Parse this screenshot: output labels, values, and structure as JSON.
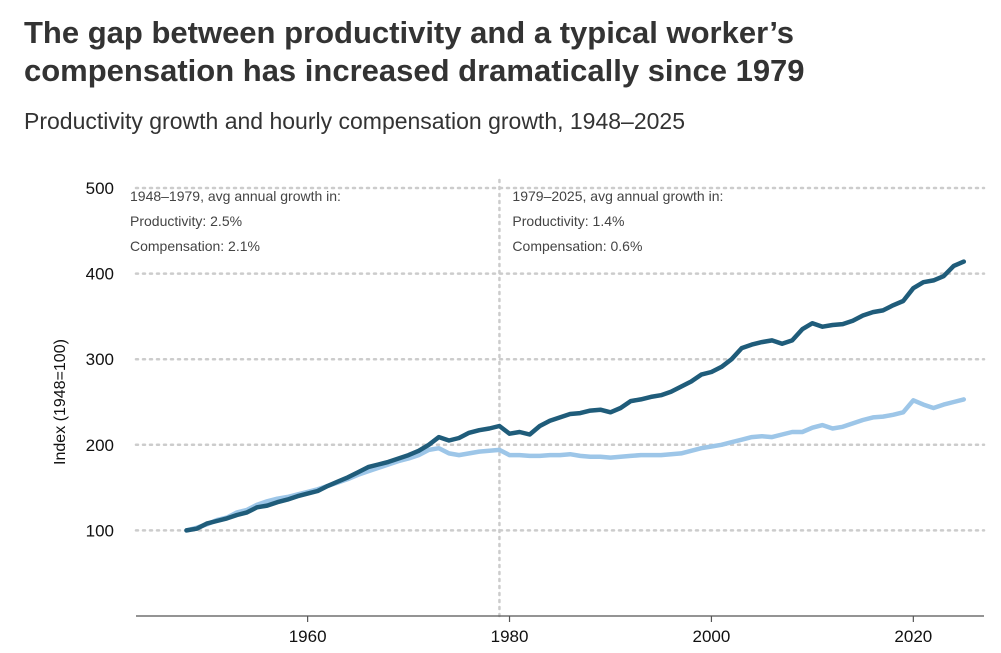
{
  "title": "The gap between productivity and a typical worker’s compensation has increased dramatically since 1979",
  "subtitle": "Productivity growth and hourly compensation growth, 1948–2025",
  "chart_data": {
    "type": "line",
    "title": "The gap between productivity and a typical worker’s compensation has increased dramatically since 1979",
    "subtitle": "Productivity growth and hourly compensation growth, 1948–2025",
    "xlabel": "",
    "ylabel": "Index (1948=100)",
    "xlim": [
      1943,
      2027
    ],
    "ylim": [
      0,
      500
    ],
    "xticks": [
      1960,
      1980,
      2000,
      2020
    ],
    "yticks": [
      100,
      200,
      300,
      400,
      500
    ],
    "grid": "horizontal dotted",
    "reference_line_x": 1979,
    "annotations": [
      {
        "side": "left",
        "lines": [
          "1948–1979, avg annual growth in:",
          "Productivity: 2.5%",
          "Compensation: 2.1%"
        ]
      },
      {
        "side": "right",
        "lines": [
          "1979–2025, avg annual growth in:",
          "Productivity: 1.4%",
          "Compensation: 0.6%"
        ]
      }
    ],
    "colors": {
      "productivity": "#1f5c7a",
      "compensation": "#9dc6e8",
      "grid": "#cccccc",
      "axis": "#555555"
    },
    "series": [
      {
        "key": "productivity",
        "color": "#1f5c7a",
        "x": [
          1948,
          1949,
          1950,
          1951,
          1952,
          1953,
          1954,
          1955,
          1956,
          1957,
          1958,
          1959,
          1960,
          1961,
          1962,
          1963,
          1964,
          1965,
          1966,
          1967,
          1968,
          1969,
          1970,
          1971,
          1972,
          1973,
          1974,
          1975,
          1976,
          1977,
          1978,
          1979,
          1980,
          1981,
          1982,
          1983,
          1984,
          1985,
          1986,
          1987,
          1988,
          1989,
          1990,
          1991,
          1992,
          1993,
          1994,
          1995,
          1996,
          1997,
          1998,
          1999,
          2000,
          2001,
          2002,
          2003,
          2004,
          2005,
          2006,
          2007,
          2008,
          2009,
          2010,
          2011,
          2012,
          2013,
          2014,
          2015,
          2016,
          2017,
          2018,
          2019,
          2020,
          2021,
          2022,
          2023,
          2024,
          2025
        ],
        "values": [
          100,
          102,
          108,
          111,
          114,
          118,
          121,
          127,
          129,
          133,
          136,
          140,
          143,
          146,
          152,
          157,
          162,
          168,
          174,
          177,
          180,
          184,
          188,
          193,
          200,
          209,
          205,
          208,
          214,
          217,
          219,
          222,
          213,
          215,
          212,
          222,
          228,
          232,
          236,
          237,
          240,
          241,
          238,
          243,
          251,
          253,
          256,
          258,
          262,
          268,
          274,
          282,
          285,
          291,
          300,
          313,
          317,
          320,
          322,
          318,
          322,
          335,
          342,
          338,
          340,
          341,
          345,
          351,
          355,
          357,
          363,
          368,
          383,
          390,
          392,
          397,
          409,
          414
        ]
      },
      {
        "key": "compensation",
        "color": "#9dc6e8",
        "x": [
          1948,
          1949,
          1950,
          1951,
          1952,
          1953,
          1954,
          1955,
          1956,
          1957,
          1958,
          1959,
          1960,
          1961,
          1962,
          1963,
          1964,
          1965,
          1966,
          1967,
          1968,
          1969,
          1970,
          1971,
          1972,
          1973,
          1974,
          1975,
          1976,
          1977,
          1978,
          1979,
          1980,
          1981,
          1982,
          1983,
          1984,
          1985,
          1986,
          1987,
          1988,
          1989,
          1990,
          1991,
          1992,
          1993,
          1994,
          1995,
          1996,
          1997,
          1998,
          1999,
          2000,
          2001,
          2002,
          2003,
          2004,
          2005,
          2006,
          2007,
          2008,
          2009,
          2010,
          2011,
          2012,
          2013,
          2014,
          2015,
          2016,
          2017,
          2018,
          2019,
          2020,
          2021,
          2022,
          2023,
          2024,
          2025
        ],
        "values": [
          100,
          103,
          107,
          112,
          115,
          121,
          124,
          130,
          134,
          137,
          139,
          142,
          145,
          148,
          152,
          156,
          160,
          165,
          169,
          173,
          177,
          181,
          184,
          188,
          194,
          196,
          190,
          188,
          190,
          192,
          193,
          194,
          188,
          188,
          187,
          187,
          188,
          188,
          189,
          187,
          186,
          186,
          185,
          186,
          187,
          188,
          188,
          188,
          189,
          190,
          193,
          196,
          198,
          200,
          203,
          206,
          209,
          210,
          209,
          212,
          215,
          215,
          220,
          223,
          219,
          221,
          225,
          229,
          232,
          233,
          235,
          238,
          252,
          247,
          243,
          247,
          250,
          253
        ]
      }
    ]
  }
}
